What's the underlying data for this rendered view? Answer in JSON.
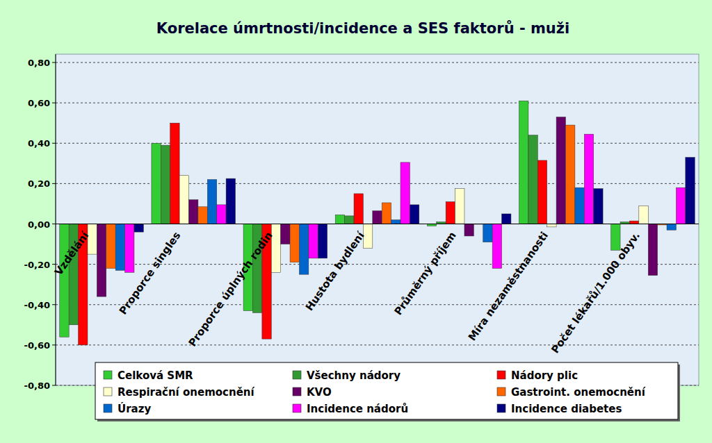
{
  "chart_data": {
    "type": "bar",
    "title": "Korelace úmrtnosti/incidence a SES faktorů - muži",
    "categories": [
      "Vzdělání",
      "Proporce singles",
      "Proporce úplných rodin",
      "Hustota bydlení",
      "Průměrný příjem",
      "Míra nezaměstnanosti",
      "Počet lékařů/1.000 obyv."
    ],
    "series": [
      {
        "name": "Celková SMR",
        "color": "#33cc33",
        "values": [
          -0.56,
          0.4,
          -0.43,
          0.045,
          -0.01,
          0.61,
          -0.13
        ]
      },
      {
        "name": "Všechny nádory",
        "color": "#339933",
        "values": [
          -0.5,
          0.39,
          -0.44,
          0.04,
          0.01,
          0.44,
          0.01
        ]
      },
      {
        "name": "Nádory plic",
        "color": "#ff0000",
        "values": [
          -0.6,
          0.5,
          -0.57,
          0.15,
          0.11,
          0.315,
          0.015
        ]
      },
      {
        "name": "Respirační onemocnění",
        "color": "#ffffcc",
        "values": [
          -0.15,
          0.24,
          -0.24,
          -0.12,
          0.175,
          -0.015,
          0.09
        ]
      },
      {
        "name": "KVO",
        "color": "#660066",
        "values": [
          -0.36,
          0.12,
          -0.1,
          0.065,
          -0.06,
          0.53,
          -0.255
        ]
      },
      {
        "name": "Gastroint. onemocnění",
        "color": "#ff6600",
        "values": [
          -0.22,
          0.085,
          -0.19,
          0.105,
          0.0,
          0.49,
          -0.005
        ]
      },
      {
        "name": "Úrazy",
        "color": "#0066cc",
        "values": [
          -0.23,
          0.22,
          -0.25,
          0.02,
          -0.09,
          0.18,
          -0.03
        ]
      },
      {
        "name": "Incidence nádorů",
        "color": "#ff00ff",
        "values": [
          -0.24,
          0.095,
          -0.17,
          0.305,
          -0.22,
          0.445,
          0.18
        ]
      },
      {
        "name": "Incidence diabetes",
        "color": "#000080",
        "values": [
          -0.04,
          0.225,
          -0.17,
          0.095,
          0.05,
          0.175,
          0.33
        ]
      }
    ],
    "ylim": [
      -0.8,
      0.8
    ],
    "yticks": [
      {
        "value": -0.8,
        "label": "-0,80"
      },
      {
        "value": -0.6,
        "label": "-0,60"
      },
      {
        "value": -0.4,
        "label": "-0,40"
      },
      {
        "value": -0.2,
        "label": "-0,20"
      },
      {
        "value": 0,
        "label": "0,00"
      },
      {
        "value": 0.2,
        "label": "0,20"
      },
      {
        "value": 0.4,
        "label": "0,40"
      },
      {
        "value": 0.6,
        "label": "0,60"
      },
      {
        "value": 0.8,
        "label": "0,80"
      }
    ],
    "grid": true,
    "legend": "bottom"
  }
}
